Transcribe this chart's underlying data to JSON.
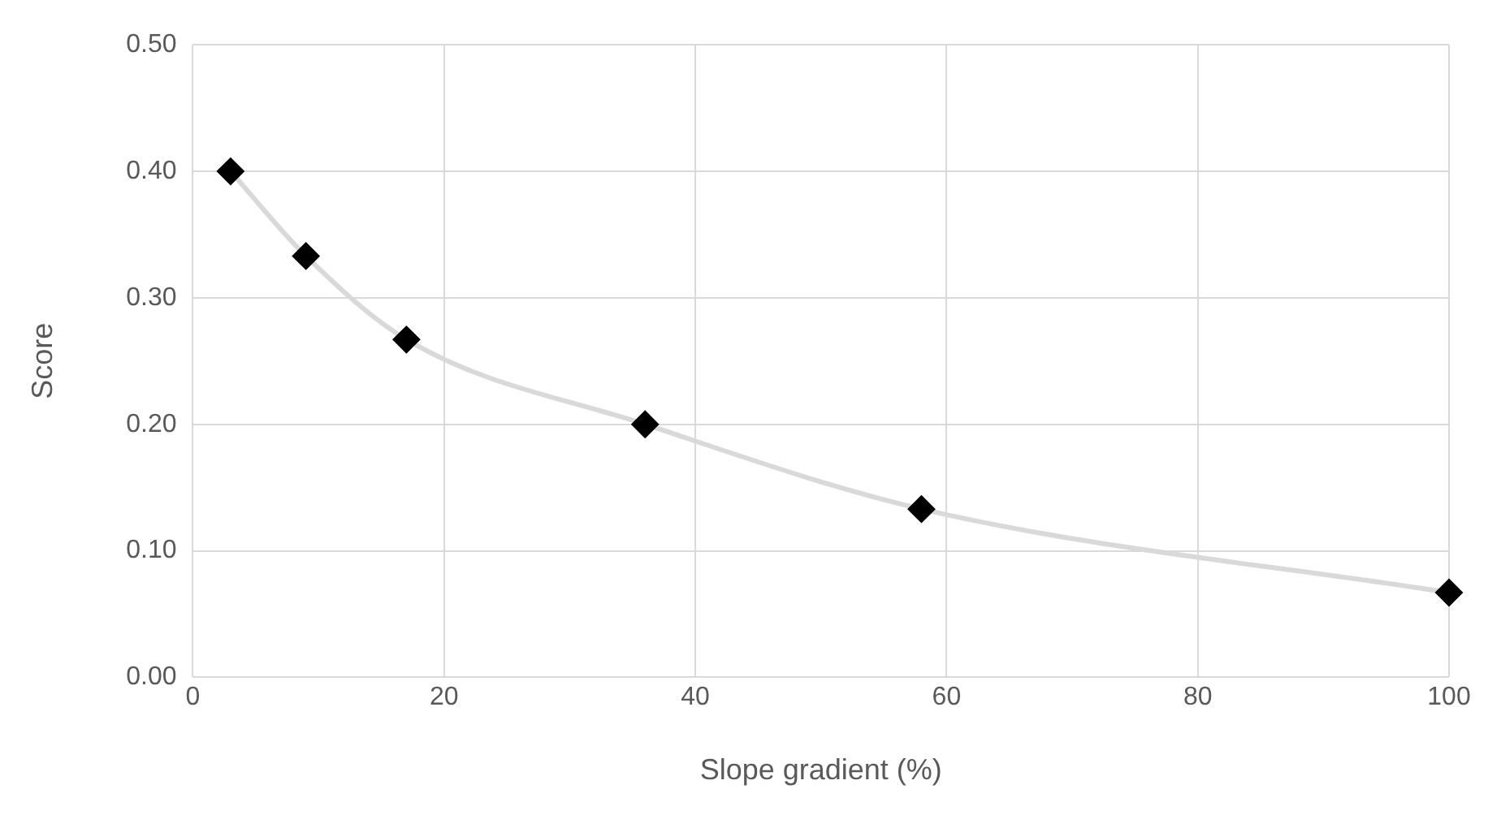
{
  "chart_data": {
    "type": "scatter",
    "xlabel": "Slope gradient (%)",
    "ylabel": "Score",
    "xlim": [
      0,
      100
    ],
    "xticks": [
      0,
      20,
      40,
      60,
      80,
      100
    ],
    "ylim": [
      0,
      0.5
    ],
    "yticks": [
      {
        "value": 0,
        "label": "0.00"
      },
      {
        "value": 0.1,
        "label": "0.10"
      },
      {
        "value": 0.2,
        "label": "0.20"
      },
      {
        "value": 0.3,
        "label": "0.30"
      },
      {
        "value": 0.4,
        "label": "0.40"
      },
      {
        "value": 0.5,
        "label": "0.50"
      }
    ],
    "grid": true,
    "series": [
      {
        "type": "line",
        "color": "#d9d9d9",
        "marker": "none",
        "x": [
          3,
          9,
          17,
          36,
          58,
          100
        ],
        "values": [
          0.4,
          0.333,
          0.267,
          0.2,
          0.133,
          0.067
        ]
      },
      {
        "type": "scatter",
        "color": "#000000",
        "marker": "diamond",
        "x": [
          3,
          9,
          17,
          36,
          58,
          100
        ],
        "values": [
          0.4,
          0.333,
          0.267,
          0.2,
          0.133,
          0.067
        ]
      }
    ]
  }
}
